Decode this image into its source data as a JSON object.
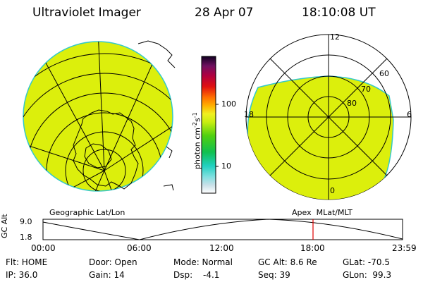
{
  "header": {
    "instrument": "Ultraviolet Imager",
    "date": "28 Apr 07",
    "time": "18:10:08 UT"
  },
  "colorbar": {
    "unit": "photon cm",
    "unit_sup1": "-2",
    "unit_mid": "s",
    "unit_sup2": "-1",
    "ticks": [
      "100",
      "10"
    ]
  },
  "left_panel": {
    "label": "Geographic Lat/Lon"
  },
  "right_panel": {
    "label": "Apex  MLat/MLT",
    "mlt_labels": {
      "top": "12",
      "left": "18",
      "right": "6",
      "bottom": "0"
    },
    "lat_labels": [
      "60",
      "70",
      "80"
    ]
  },
  "altitude_plot": {
    "ylabel": "GC Alt",
    "yticks": [
      "9.0",
      "1.8"
    ],
    "xticks": [
      "00:00",
      "06:00",
      "12:00",
      "18:00",
      "23:59"
    ],
    "marker_color": "#e00000"
  },
  "info": {
    "flt_label": "Flt: HOME",
    "ip_label": "IP: 36.0",
    "door_label": "Door: Open",
    "gain_label": "Gain: 14",
    "mode_label": "Mode: Normal",
    "dsp_label": "Dsp:",
    "dsp_value": "-4.1",
    "gcalt_label": "GC Alt: 8.6 Re",
    "seq_label": "Seq: 39",
    "glat_label": "GLat: -70.5",
    "glon_label": "GLon:  99.3"
  },
  "colors": {
    "image_fill": "#dcef0c",
    "image_edge": "#34c9c9"
  }
}
